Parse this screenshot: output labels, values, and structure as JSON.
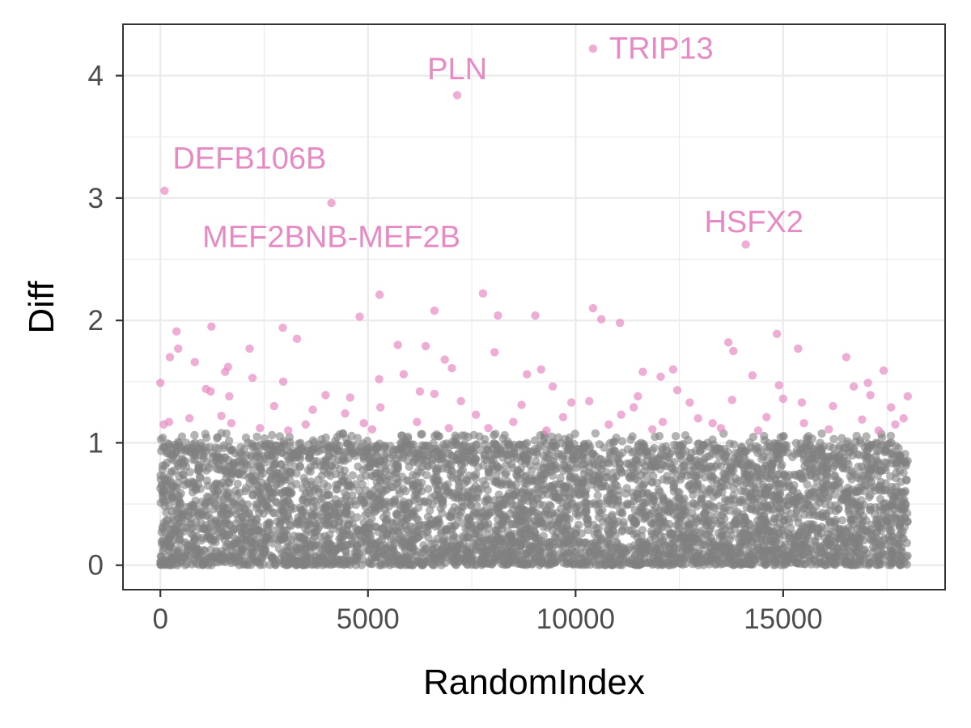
{
  "chart_data": {
    "type": "scatter",
    "title": "",
    "xlabel": "RandomIndex",
    "ylabel": "Diff",
    "xlim": [
      -900,
      18900
    ],
    "ylim": [
      -0.2,
      4.42
    ],
    "xticks": [
      0,
      5000,
      10000,
      15000
    ],
    "xtick_labels": [
      "0",
      "5000",
      "10000",
      "15000"
    ],
    "yticks": [
      0,
      1,
      2,
      3,
      4
    ],
    "ytick_labels": [
      "0",
      "1",
      "2",
      "3",
      "4"
    ],
    "grid": true,
    "legend": "none",
    "colors": {
      "background_points": "#808080",
      "highlight_points": "#e78ac3",
      "labels": "#e78ac3"
    },
    "background_series": {
      "color": "#808080",
      "n": 5200,
      "x_range": [
        0,
        18000
      ],
      "y_range": [
        0,
        1.08
      ],
      "note": "dense band of non-highlighted genes"
    },
    "highlight_series": {
      "color": "#e78ac3",
      "points": [
        {
          "x": 10420,
          "y": 4.22
        },
        {
          "x": 7150,
          "y": 3.84
        },
        {
          "x": 100,
          "y": 3.06
        },
        {
          "x": 4120,
          "y": 2.96
        },
        {
          "x": 14100,
          "y": 2.62
        },
        {
          "x": 5280,
          "y": 2.21
        },
        {
          "x": 7770,
          "y": 2.22
        },
        {
          "x": 6600,
          "y": 2.08
        },
        {
          "x": 10420,
          "y": 2.1
        },
        {
          "x": 4800,
          "y": 2.03
        },
        {
          "x": 8130,
          "y": 2.04
        },
        {
          "x": 9030,
          "y": 2.04
        },
        {
          "x": 10620,
          "y": 2.01
        },
        {
          "x": 11070,
          "y": 1.98
        },
        {
          "x": 1230,
          "y": 1.95
        },
        {
          "x": 2950,
          "y": 1.94
        },
        {
          "x": 390,
          "y": 1.91
        },
        {
          "x": 14850,
          "y": 1.89
        },
        {
          "x": 3290,
          "y": 1.85
        },
        {
          "x": 13680,
          "y": 1.82
        },
        {
          "x": 5720,
          "y": 1.8
        },
        {
          "x": 6390,
          "y": 1.79
        },
        {
          "x": 430,
          "y": 1.77
        },
        {
          "x": 2150,
          "y": 1.77
        },
        {
          "x": 15360,
          "y": 1.77
        },
        {
          "x": 8050,
          "y": 1.74
        },
        {
          "x": 13800,
          "y": 1.75
        },
        {
          "x": 230,
          "y": 1.7
        },
        {
          "x": 16520,
          "y": 1.7
        },
        {
          "x": 6850,
          "y": 1.68
        },
        {
          "x": 830,
          "y": 1.66
        },
        {
          "x": 7020,
          "y": 1.61
        },
        {
          "x": 9170,
          "y": 1.6
        },
        {
          "x": 1630,
          "y": 1.62
        },
        {
          "x": 12350,
          "y": 1.6
        },
        {
          "x": 1560,
          "y": 1.58
        },
        {
          "x": 17420,
          "y": 1.59
        },
        {
          "x": 11620,
          "y": 1.58
        },
        {
          "x": 5860,
          "y": 1.56
        },
        {
          "x": 8830,
          "y": 1.56
        },
        {
          "x": 12050,
          "y": 1.54
        },
        {
          "x": 14260,
          "y": 1.55
        },
        {
          "x": 2220,
          "y": 1.53
        },
        {
          "x": 5270,
          "y": 1.52
        },
        {
          "x": 2960,
          "y": 1.5
        },
        {
          "x": 0,
          "y": 1.49
        },
        {
          "x": 17040,
          "y": 1.49
        },
        {
          "x": 9450,
          "y": 1.46
        },
        {
          "x": 14900,
          "y": 1.47
        },
        {
          "x": 16700,
          "y": 1.46
        },
        {
          "x": 12450,
          "y": 1.43
        },
        {
          "x": 1100,
          "y": 1.44
        },
        {
          "x": 1210,
          "y": 1.42
        },
        {
          "x": 6250,
          "y": 1.42
        },
        {
          "x": 6600,
          "y": 1.4
        },
        {
          "x": 11500,
          "y": 1.38
        },
        {
          "x": 7240,
          "y": 1.34
        },
        {
          "x": 3980,
          "y": 1.39
        },
        {
          "x": 4570,
          "y": 1.37
        },
        {
          "x": 1660,
          "y": 1.38
        },
        {
          "x": 8700,
          "y": 1.31
        },
        {
          "x": 2740,
          "y": 1.3
        },
        {
          "x": 12750,
          "y": 1.33
        },
        {
          "x": 13770,
          "y": 1.35
        },
        {
          "x": 15000,
          "y": 1.36
        },
        {
          "x": 16200,
          "y": 1.3
        },
        {
          "x": 17100,
          "y": 1.39
        },
        {
          "x": 18000,
          "y": 1.38
        },
        {
          "x": 3670,
          "y": 1.27
        },
        {
          "x": 5300,
          "y": 1.29
        },
        {
          "x": 9900,
          "y": 1.33
        },
        {
          "x": 10330,
          "y": 1.34
        },
        {
          "x": 11400,
          "y": 1.29
        },
        {
          "x": 15450,
          "y": 1.33
        },
        {
          "x": 17600,
          "y": 1.29
        },
        {
          "x": 700,
          "y": 1.2
        },
        {
          "x": 1470,
          "y": 1.22
        },
        {
          "x": 4450,
          "y": 1.24
        },
        {
          "x": 7600,
          "y": 1.23
        },
        {
          "x": 9700,
          "y": 1.21
        },
        {
          "x": 11100,
          "y": 1.23
        },
        {
          "x": 12950,
          "y": 1.2
        },
        {
          "x": 14600,
          "y": 1.21
        },
        {
          "x": 16900,
          "y": 1.19
        },
        {
          "x": 17900,
          "y": 1.2
        },
        {
          "x": 80,
          "y": 1.15
        },
        {
          "x": 210,
          "y": 1.17
        },
        {
          "x": 1710,
          "y": 1.16
        },
        {
          "x": 3500,
          "y": 1.15
        },
        {
          "x": 4900,
          "y": 1.16
        },
        {
          "x": 6180,
          "y": 1.17
        },
        {
          "x": 8500,
          "y": 1.17
        },
        {
          "x": 10800,
          "y": 1.15
        },
        {
          "x": 12100,
          "y": 1.17
        },
        {
          "x": 13300,
          "y": 1.16
        },
        {
          "x": 15500,
          "y": 1.16
        },
        {
          "x": 17700,
          "y": 1.15
        },
        {
          "x": 2400,
          "y": 1.12
        },
        {
          "x": 3080,
          "y": 1.1
        },
        {
          "x": 5100,
          "y": 1.11
        },
        {
          "x": 6950,
          "y": 1.12
        },
        {
          "x": 7900,
          "y": 1.12
        },
        {
          "x": 9300,
          "y": 1.1
        },
        {
          "x": 11850,
          "y": 1.11
        },
        {
          "x": 13500,
          "y": 1.12
        },
        {
          "x": 14400,
          "y": 1.1
        },
        {
          "x": 16100,
          "y": 1.11
        },
        {
          "x": 17300,
          "y": 1.1
        }
      ]
    },
    "annotations": [
      {
        "text": "TRIP13",
        "x": 10420,
        "y": 4.22,
        "anchor": "start",
        "dx": 1.0,
        "dy": 0
      },
      {
        "text": "PLN",
        "x": 7150,
        "y": 3.84,
        "anchor": "middle",
        "dx": 0,
        "dy": 0.21
      },
      {
        "text": "DEFB106B",
        "x": 100,
        "y": 3.06,
        "anchor": "start",
        "dx": 0.5,
        "dy": 0.26
      },
      {
        "text": "MEF2BNB-MEF2B",
        "x": 4120,
        "y": 2.96,
        "anchor": "middle",
        "dx": 0,
        "dy": -0.28
      },
      {
        "text": "HSFX2",
        "x": 14100,
        "y": 2.62,
        "anchor": "middle",
        "dx": 0.5,
        "dy": 0.18
      }
    ]
  }
}
